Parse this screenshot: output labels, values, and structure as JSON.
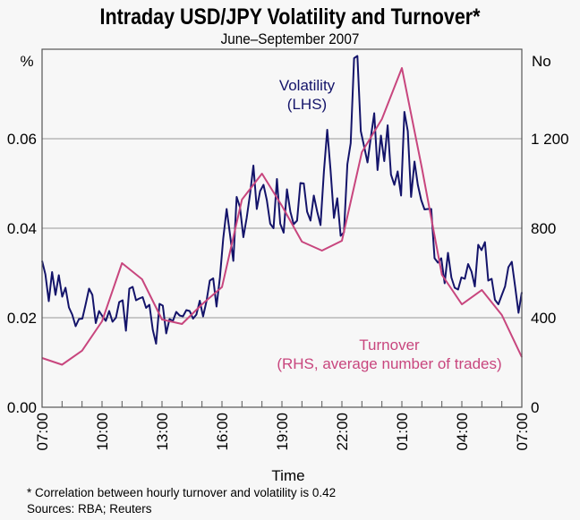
{
  "chart_data": {
    "type": "line",
    "title": "Intraday USD/JPY Volatility and Turnover*",
    "subtitle": "June–September 2007",
    "xlabel": "Time",
    "x_tick_labels": [
      "07:00",
      "10:00",
      "13:00",
      "16:00",
      "19:00",
      "22:00",
      "01:00",
      "04:00",
      "07:00"
    ],
    "x_range_hours": [
      0,
      24
    ],
    "left_axis": {
      "unit": "%",
      "ylim": [
        0,
        0.08
      ],
      "ticks": [
        0,
        0.02,
        0.04,
        0.06
      ],
      "tick_labels": [
        "0.00",
        "0.02",
        "0.04",
        "0.06"
      ]
    },
    "right_axis": {
      "unit": "No",
      "ylim": [
        0,
        1600
      ],
      "ticks": [
        0,
        400,
        800,
        1200
      ],
      "tick_labels": [
        "0",
        "400",
        "800",
        "1 200"
      ]
    },
    "grid": true,
    "series": [
      {
        "name": "Volatility",
        "axis_label": "(LHS)",
        "color": "#14146a",
        "axis": "left",
        "values": [
          0.0327,
          0.0297,
          0.0237,
          0.0302,
          0.0251,
          0.0295,
          0.0247,
          0.0267,
          0.0223,
          0.0207,
          0.0181,
          0.0197,
          0.0198,
          0.023,
          0.0265,
          0.0251,
          0.0188,
          0.0215,
          0.0203,
          0.0193,
          0.0215,
          0.0191,
          0.02,
          0.0235,
          0.0239,
          0.0171,
          0.0265,
          0.0269,
          0.0239,
          0.0243,
          0.0246,
          0.0222,
          0.0229,
          0.0173,
          0.0142,
          0.0231,
          0.0227,
          0.0165,
          0.0197,
          0.0193,
          0.0213,
          0.0205,
          0.0203,
          0.0217,
          0.0215,
          0.0198,
          0.0207,
          0.0238,
          0.0203,
          0.0237,
          0.0283,
          0.0288,
          0.0225,
          0.029,
          0.0377,
          0.0443,
          0.0387,
          0.0327,
          0.047,
          0.0447,
          0.038,
          0.0423,
          0.0477,
          0.054,
          0.0443,
          0.0483,
          0.0497,
          0.0463,
          0.041,
          0.04,
          0.051,
          0.041,
          0.039,
          0.0487,
          0.0437,
          0.0409,
          0.0417,
          0.0501,
          0.05,
          0.0437,
          0.0417,
          0.0473,
          0.0437,
          0.0407,
          0.0527,
          0.062,
          0.053,
          0.0423,
          0.0467,
          0.0383,
          0.0391,
          0.0543,
          0.059,
          0.078,
          0.0785,
          0.0617,
          0.0583,
          0.0547,
          0.0603,
          0.0657,
          0.053,
          0.0607,
          0.055,
          0.063,
          0.052,
          0.0497,
          0.0527,
          0.0473,
          0.066,
          0.0617,
          0.047,
          0.0549,
          0.0497,
          0.0463,
          0.0442,
          0.0443,
          0.0443,
          0.0333,
          0.0323,
          0.0333,
          0.0277,
          0.0345,
          0.029,
          0.0267,
          0.0263,
          0.029,
          0.0287,
          0.032,
          0.0303,
          0.027,
          0.0363,
          0.0351,
          0.0369,
          0.0283,
          0.0287,
          0.024,
          0.023,
          0.025,
          0.027,
          0.0313,
          0.0325,
          0.027,
          0.0211,
          0.0257
        ]
      },
      {
        "name": "Turnover",
        "axis_label": "(RHS, average number of trades)",
        "color": "#c8467e",
        "axis": "right",
        "values": [
          220,
          190,
          253,
          384,
          644,
          572,
          392,
          372,
          460,
          537,
          928,
          1044,
          900,
          740,
          700,
          744,
          1140,
          1288,
          1516,
          1070,
          592,
          460,
          524,
          412,
          224
        ]
      }
    ]
  },
  "footnotes": {
    "note": "*   Correlation between hourly turnover and volatility is 0.42",
    "sources": "Sources: RBA; Reuters"
  }
}
